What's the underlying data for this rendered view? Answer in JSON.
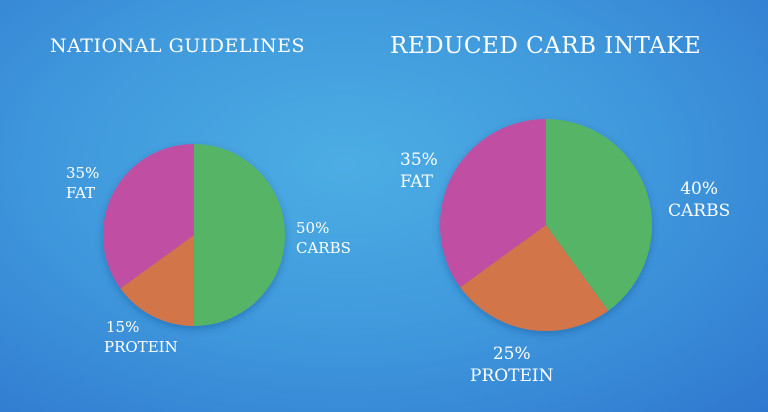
{
  "colors": {
    "carbs": "#55b465",
    "protein": "#d2744a",
    "fat": "#c050a3",
    "background": "#3f98dc"
  },
  "chart_data": [
    {
      "type": "pie",
      "title": "NATIONAL GUIDELINES",
      "slices": [
        {
          "label": "CARBS",
          "value": 50,
          "pct": "50%"
        },
        {
          "label": "PROTEIN",
          "value": 15,
          "pct": "15%"
        },
        {
          "label": "FAT",
          "value": 35,
          "pct": "35%"
        }
      ]
    },
    {
      "type": "pie",
      "title": "REDUCED CARB INTAKE",
      "slices": [
        {
          "label": "CARBS",
          "value": 40,
          "pct": "40%"
        },
        {
          "label": "PROTEIN",
          "value": 25,
          "pct": "25%"
        },
        {
          "label": "FAT",
          "value": 35,
          "pct": "35%"
        }
      ]
    }
  ]
}
